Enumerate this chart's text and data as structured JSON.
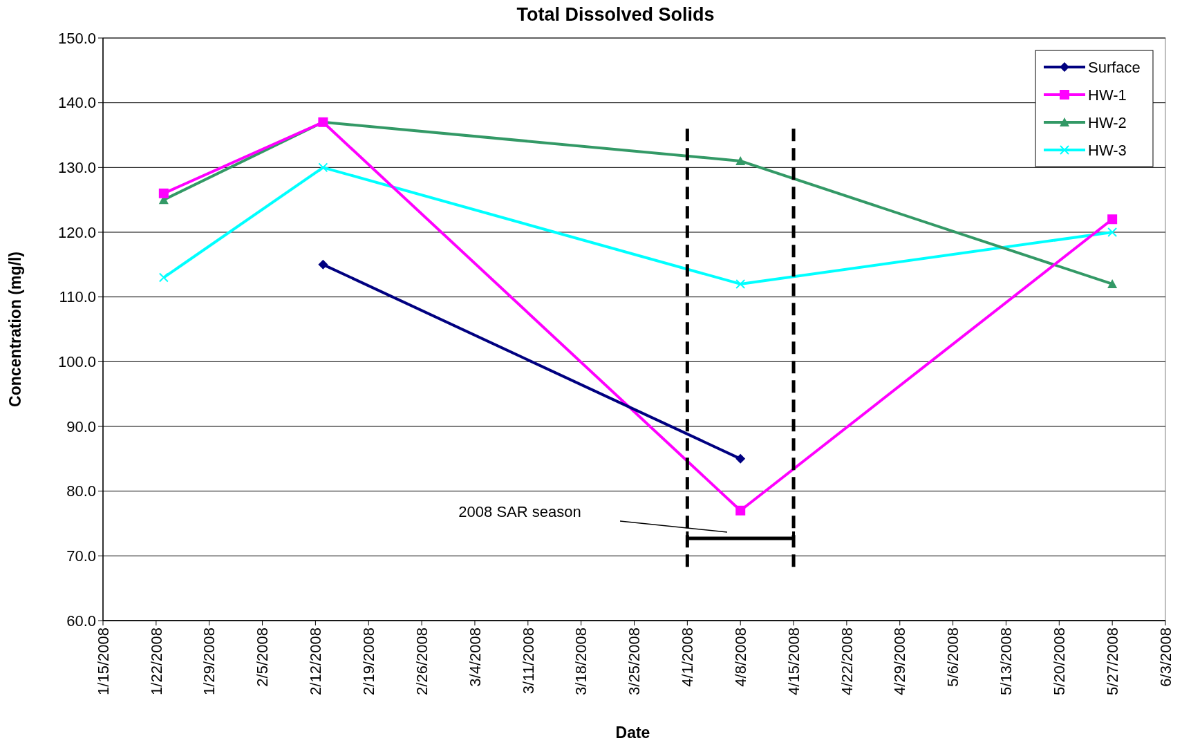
{
  "chart_data": {
    "type": "line",
    "title": "Total Dissolved Solids",
    "xlabel": "Date",
    "ylabel": "Concentration (mg/l)",
    "xlim": [
      "2008-01-15",
      "2008-06-03"
    ],
    "xticks": [
      {
        "value": "2008-01-15",
        "label": "1/15/2008"
      },
      {
        "value": "2008-01-22",
        "label": "1/22/2008"
      },
      {
        "value": "2008-01-29",
        "label": "1/29/2008"
      },
      {
        "value": "2008-02-05",
        "label": "2/5/2008"
      },
      {
        "value": "2008-02-12",
        "label": "2/12/2008"
      },
      {
        "value": "2008-02-19",
        "label": "2/19/2008"
      },
      {
        "value": "2008-02-26",
        "label": "2/26/2008"
      },
      {
        "value": "2008-03-04",
        "label": "3/4/2008"
      },
      {
        "value": "2008-03-11",
        "label": "3/11/2008"
      },
      {
        "value": "2008-03-18",
        "label": "3/18/2008"
      },
      {
        "value": "2008-03-25",
        "label": "3/25/2008"
      },
      {
        "value": "2008-04-01",
        "label": "4/1/2008"
      },
      {
        "value": "2008-04-08",
        "label": "4/8/2008"
      },
      {
        "value": "2008-04-15",
        "label": "4/15/2008"
      },
      {
        "value": "2008-04-22",
        "label": "4/22/2008"
      },
      {
        "value": "2008-04-29",
        "label": "4/29/2008"
      },
      {
        "value": "2008-05-06",
        "label": "5/6/2008"
      },
      {
        "value": "2008-05-13",
        "label": "5/13/2008"
      },
      {
        "value": "2008-05-20",
        "label": "5/20/2008"
      },
      {
        "value": "2008-05-27",
        "label": "5/27/2008"
      },
      {
        "value": "2008-06-03",
        "label": "6/3/2008"
      }
    ],
    "ylim": [
      60,
      150
    ],
    "yticks": [
      {
        "value": 60,
        "label": "60.0"
      },
      {
        "value": 70,
        "label": "70.0"
      },
      {
        "value": 80,
        "label": "80.0"
      },
      {
        "value": 90,
        "label": "90.0"
      },
      {
        "value": 100,
        "label": "100.0"
      },
      {
        "value": 110,
        "label": "110.0"
      },
      {
        "value": 120,
        "label": "120.0"
      },
      {
        "value": 130,
        "label": "130.0"
      },
      {
        "value": 140,
        "label": "140.0"
      },
      {
        "value": 150,
        "label": "150.0"
      }
    ],
    "grid": "y",
    "legend": "top right",
    "line_style": "solid",
    "series": [
      {
        "name": "Surface",
        "color": "#000080",
        "marker": "diamond",
        "x": [
          "2008-02-13",
          "2008-04-08"
        ],
        "values": [
          115,
          85
        ]
      },
      {
        "name": "HW-1",
        "color": "#ff00ff",
        "marker": "square",
        "x": [
          "2008-01-23",
          "2008-02-13",
          "2008-04-08",
          "2008-05-27"
        ],
        "values": [
          126,
          137,
          77,
          122
        ]
      },
      {
        "name": "HW-2",
        "color": "#339966",
        "marker": "triangle",
        "x": [
          "2008-01-23",
          "2008-02-13",
          "2008-04-08",
          "2008-05-27"
        ],
        "values": [
          125,
          137,
          131,
          112
        ]
      },
      {
        "name": "HW-3",
        "color": "#00ffff",
        "marker": "cross",
        "x": [
          "2008-01-23",
          "2008-02-13",
          "2008-04-08",
          "2008-05-27"
        ],
        "values": [
          113,
          130,
          112,
          120
        ]
      }
    ],
    "ref_lines": [
      {
        "axis": "x",
        "value": "2008-04-01",
        "color": "#000000",
        "line_style": "dashed"
      },
      {
        "axis": "x",
        "value": "2008-04-15",
        "color": "#000000",
        "line_style": "dashed"
      }
    ],
    "annotations": [
      "2008 SAR season"
    ]
  }
}
